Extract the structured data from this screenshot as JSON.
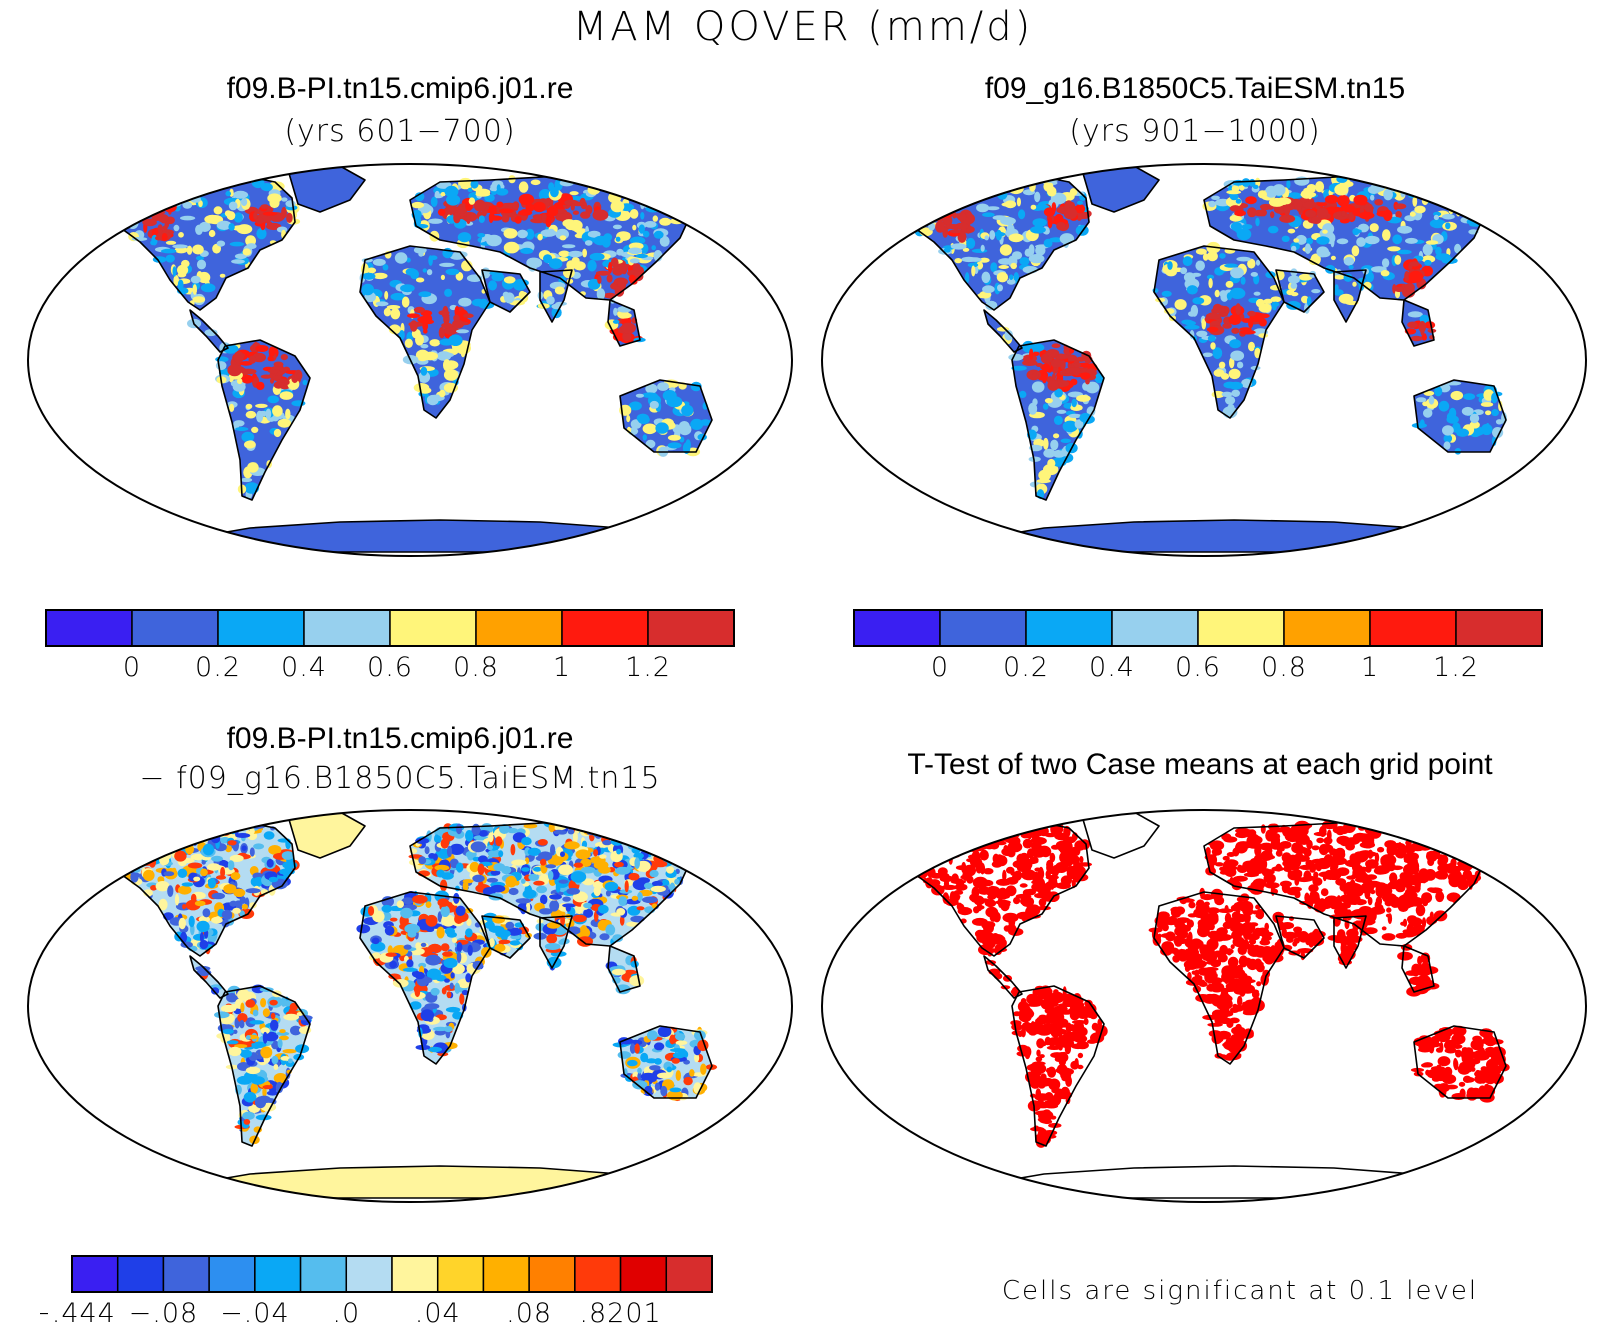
{
  "figure": {
    "title": "MAM QOVER (mm/d)"
  },
  "panels": [
    {
      "id": "case1",
      "title": "f09.B-PI.tn15.cmip6.j01.re",
      "subtitle": "(yrs 601−700)",
      "ocean_color": "#ffffff",
      "land_base_color": "#3f64dc"
    },
    {
      "id": "case2",
      "title": "f09_g16.B1850C5.TaiESM.tn15",
      "subtitle": "(yrs 901−1000)",
      "ocean_color": "#ffffff",
      "land_base_color": "#3f64dc"
    },
    {
      "id": "diff",
      "title": "f09.B-PI.tn15.cmip6.j01.re",
      "subtitle": "− f09_g16.B1850C5.TaiESM.tn15",
      "ocean_color": "#ffffff",
      "land_base_color": "#b4dcf2"
    },
    {
      "id": "ttest",
      "title": "T-Test of two Case means at each grid point",
      "subtitle": "",
      "ocean_color": "#ffffff",
      "land_base_color": "#ffffff",
      "significant_color": "#ff0000"
    }
  ],
  "colorbars": {
    "case": {
      "colors": [
        "#3a1ff2",
        "#3f64dc",
        "#0aa8f5",
        "#97d0ee",
        "#fff57a",
        "#ffa100",
        "#ff1a0e",
        "#d72d2d"
      ],
      "tick_labels": [
        "0",
        "0.2",
        "0.4",
        "0.6",
        "0.8",
        "1",
        "1.2"
      ]
    },
    "diff": {
      "colors": [
        "#3a1ff2",
        "#1f3fe8",
        "#3f64dc",
        "#2d8ff0",
        "#0aa8f5",
        "#55bdee",
        "#b4dcf2",
        "#fff59d",
        "#ffd42a",
        "#ffb000",
        "#ff8000",
        "#ff3a0a",
        "#e00000",
        "#d72d2d"
      ],
      "tick_labels": [
        "−.444",
        "−.08",
        "−.04",
        ".0",
        ".04",
        ".08",
        ".8201"
      ]
    }
  },
  "ttest_note": "Cells are significant at 0.1 level"
}
